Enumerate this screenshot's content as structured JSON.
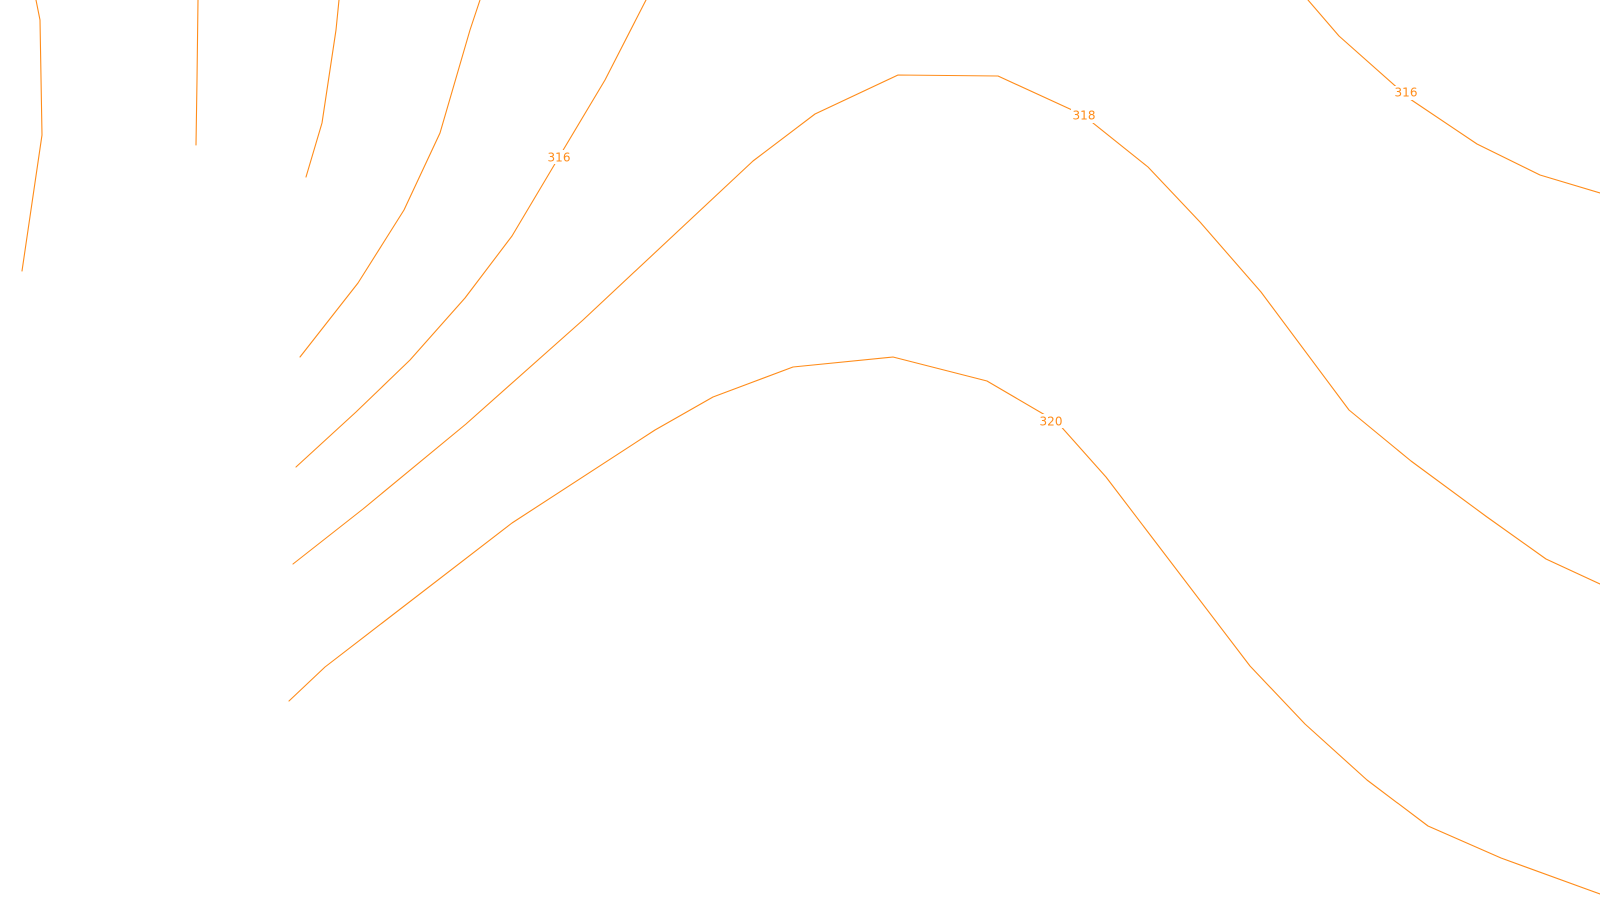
{
  "map": {
    "background_color": "#ffffff",
    "contour_color": "#ff8c1a",
    "contour_labels": [
      {
        "id": "label-316-left",
        "text": "316"
      },
      {
        "id": "label-318",
        "text": "318"
      },
      {
        "id": "label-320",
        "text": "320"
      },
      {
        "id": "label-316-right",
        "text": "316"
      }
    ]
  }
}
